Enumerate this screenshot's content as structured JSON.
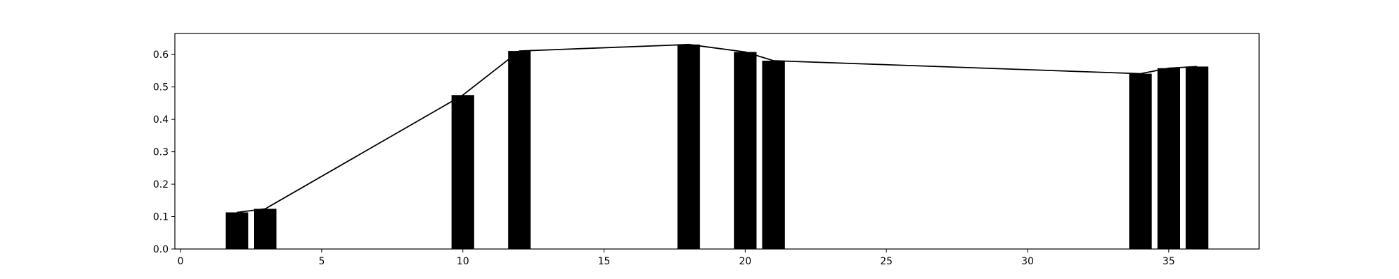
{
  "chart_data": {
    "type": "bar",
    "title": "",
    "xlabel": "",
    "ylabel": "",
    "xlim": [
      -0.2,
      38.2
    ],
    "ylim": [
      0.0,
      0.665
    ],
    "grid": false,
    "bar_color": "#000000",
    "line_color": "#000000",
    "x_ticks": [
      0,
      5,
      10,
      15,
      20,
      25,
      30,
      35
    ],
    "y_ticks": [
      0.0,
      0.1,
      0.2,
      0.3,
      0.4,
      0.5,
      0.6
    ],
    "x_tick_labels": [
      "0",
      "5",
      "10",
      "15",
      "20",
      "25",
      "30",
      "35"
    ],
    "y_tick_labels": [
      "0.0",
      "0.1",
      "0.2",
      "0.3",
      "0.4",
      "0.5",
      "0.6"
    ],
    "bar_width": 0.8,
    "x": [
      2,
      3,
      10,
      12,
      18,
      20,
      21,
      34,
      35,
      36
    ],
    "values": [
      0.113,
      0.124,
      0.475,
      0.611,
      0.631,
      0.608,
      0.581,
      0.541,
      0.558,
      0.563
    ]
  }
}
